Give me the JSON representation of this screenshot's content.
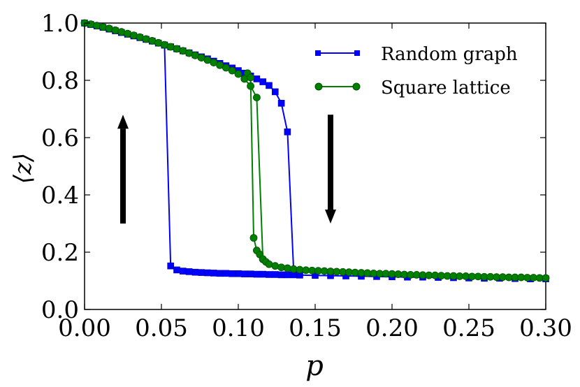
{
  "chart_data": {
    "type": "line",
    "xlabel": "p",
    "ylabel": "⟨z⟩",
    "xlim": [
      0.0,
      0.3
    ],
    "ylim": [
      0.0,
      1.0
    ],
    "x_ticks": [
      "0.00",
      "0.05",
      "0.10",
      "0.15",
      "0.20",
      "0.25",
      "0.30"
    ],
    "y_ticks": [
      "0.0",
      "0.2",
      "0.4",
      "0.6",
      "0.8",
      "1.0"
    ],
    "legend_position": "top-right",
    "series": [
      {
        "name": "Random graph",
        "color": "#0000ff",
        "marker": "square",
        "upper_branch": {
          "x": [
            0.0,
            0.004,
            0.008,
            0.012,
            0.016,
            0.02,
            0.024,
            0.028,
            0.032,
            0.036,
            0.04,
            0.044,
            0.048,
            0.052,
            0.056,
            0.06,
            0.064,
            0.068,
            0.072,
            0.076,
            0.08,
            0.084,
            0.088,
            0.092,
            0.096,
            0.1,
            0.104,
            0.108,
            0.112,
            0.116,
            0.12,
            0.124,
            0.128,
            0.132,
            0.136
          ],
          "y": [
            1.0,
            0.995,
            0.99,
            0.985,
            0.979,
            0.973,
            0.967,
            0.961,
            0.955,
            0.949,
            0.943,
            0.937,
            0.93,
            0.923,
            0.917,
            0.91,
            0.903,
            0.896,
            0.889,
            0.882,
            0.875,
            0.867,
            0.859,
            0.851,
            0.843,
            0.834,
            0.825,
            0.815,
            0.805,
            0.795,
            0.782,
            0.76,
            0.72,
            0.62,
            0.135
          ]
        },
        "lower_branch": {
          "x": [
            0.052,
            0.056,
            0.06,
            0.064,
            0.068,
            0.072,
            0.076,
            0.08,
            0.084,
            0.088,
            0.092,
            0.096,
            0.1,
            0.104,
            0.108,
            0.112,
            0.116,
            0.12,
            0.124,
            0.128,
            0.132,
            0.136,
            0.14,
            0.15,
            0.16,
            0.17,
            0.18,
            0.19,
            0.2,
            0.21,
            0.22,
            0.23,
            0.24,
            0.25,
            0.26,
            0.27,
            0.28,
            0.29,
            0.3
          ],
          "y": [
            0.923,
            0.152,
            0.138,
            0.134,
            0.132,
            0.13,
            0.129,
            0.128,
            0.127,
            0.126,
            0.126,
            0.125,
            0.125,
            0.124,
            0.124,
            0.123,
            0.123,
            0.122,
            0.122,
            0.121,
            0.121,
            0.121,
            0.12,
            0.119,
            0.118,
            0.117,
            0.116,
            0.115,
            0.114,
            0.113,
            0.113,
            0.112,
            0.111,
            0.11,
            0.109,
            0.109,
            0.108,
            0.107,
            0.107
          ]
        }
      },
      {
        "name": "Square lattice",
        "color": "#008000",
        "marker": "circle",
        "upper_branch": {
          "x": [
            0.0,
            0.004,
            0.008,
            0.012,
            0.016,
            0.02,
            0.024,
            0.028,
            0.032,
            0.036,
            0.04,
            0.044,
            0.048,
            0.052,
            0.056,
            0.06,
            0.064,
            0.068,
            0.072,
            0.076,
            0.08,
            0.084,
            0.088,
            0.092,
            0.096,
            0.1,
            0.104,
            0.108,
            0.112,
            0.116
          ],
          "y": [
            1.0,
            0.996,
            0.991,
            0.986,
            0.981,
            0.975,
            0.969,
            0.963,
            0.957,
            0.951,
            0.944,
            0.938,
            0.931,
            0.924,
            0.917,
            0.91,
            0.903,
            0.895,
            0.887,
            0.879,
            0.871,
            0.862,
            0.853,
            0.844,
            0.834,
            0.822,
            0.805,
            0.78,
            0.74,
            0.175
          ]
        },
        "lower_branch": {
          "x": [
            0.106,
            0.108,
            0.11,
            0.112,
            0.114,
            0.116,
            0.118,
            0.12,
            0.124,
            0.128,
            0.132,
            0.136,
            0.14,
            0.144,
            0.148,
            0.152,
            0.156,
            0.16,
            0.164,
            0.168,
            0.172,
            0.176,
            0.18,
            0.184,
            0.188,
            0.192,
            0.196,
            0.2,
            0.204,
            0.208,
            0.212,
            0.216,
            0.22,
            0.224,
            0.228,
            0.232,
            0.236,
            0.24,
            0.244,
            0.248,
            0.252,
            0.256,
            0.26,
            0.264,
            0.268,
            0.272,
            0.276,
            0.28,
            0.284,
            0.288,
            0.292,
            0.296,
            0.3
          ],
          "y": [
            0.825,
            0.81,
            0.25,
            0.206,
            0.192,
            0.176,
            0.166,
            0.158,
            0.152,
            0.147,
            0.144,
            0.141,
            0.139,
            0.137,
            0.136,
            0.135,
            0.134,
            0.133,
            0.132,
            0.131,
            0.13,
            0.129,
            0.128,
            0.127,
            0.126,
            0.125,
            0.125,
            0.124,
            0.123,
            0.122,
            0.121,
            0.121,
            0.12,
            0.119,
            0.119,
            0.118,
            0.117,
            0.117,
            0.116,
            0.116,
            0.115,
            0.115,
            0.114,
            0.114,
            0.113,
            0.113,
            0.112,
            0.112,
            0.112,
            0.111,
            0.111,
            0.11,
            0.11
          ]
        }
      }
    ],
    "annotations": [
      {
        "type": "arrow",
        "direction": "up",
        "x": 0.025,
        "y_from": 0.3,
        "y_to": 0.68
      },
      {
        "type": "arrow",
        "direction": "down",
        "x": 0.16,
        "y_from": 0.68,
        "y_to": 0.3
      }
    ]
  }
}
